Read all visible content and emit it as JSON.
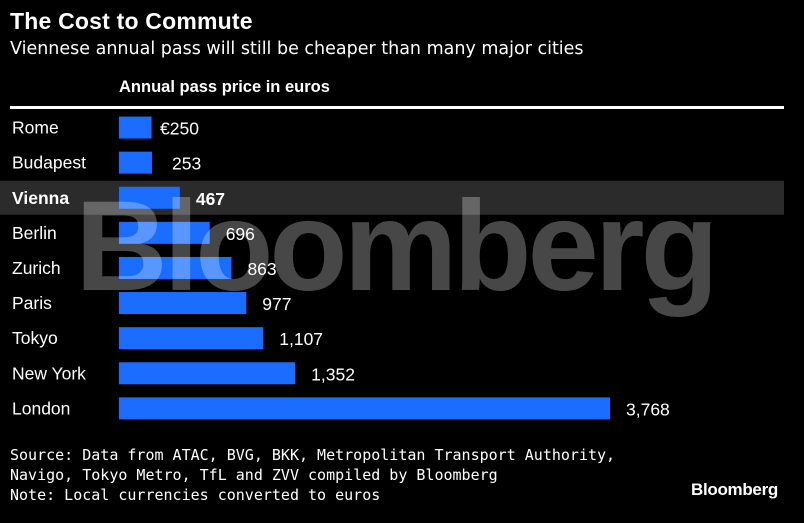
{
  "title": "The Cost to Commute",
  "subtitle": "Viennese annual pass will still be cheaper than many major cities",
  "chart_data": {
    "type": "bar",
    "orientation": "horizontal",
    "column_header": "Annual pass price in euros",
    "categories": [
      "Rome",
      "Budapest",
      "Vienna",
      "Berlin",
      "Zurich",
      "Paris",
      "Tokyo",
      "New York",
      "London"
    ],
    "values": [
      250,
      253,
      467,
      696,
      863,
      977,
      1107,
      1352,
      3768
    ],
    "value_labels": [
      "€250",
      "253",
      "467",
      "696",
      "863",
      "977",
      "1,107",
      "1,352",
      "3,768"
    ],
    "highlight": "Vienna",
    "unit": "euros",
    "xlim": [
      0,
      3768
    ]
  },
  "watermark": "Bloomberg",
  "footer": {
    "source_lines": [
      "Source: Data from ATAC, BVG, BKK, Metropolitan Transport Authority,",
      "Navigo, Tokyo Metro, TfL and ZVV compiled by Bloomberg",
      "Note: Local currencies converted to euros"
    ],
    "logo": "Bloomberg"
  },
  "colors": {
    "background": "#000000",
    "bar": "#1a6dff",
    "highlight_row": "#2b2b2b",
    "text": "#ffffff"
  }
}
